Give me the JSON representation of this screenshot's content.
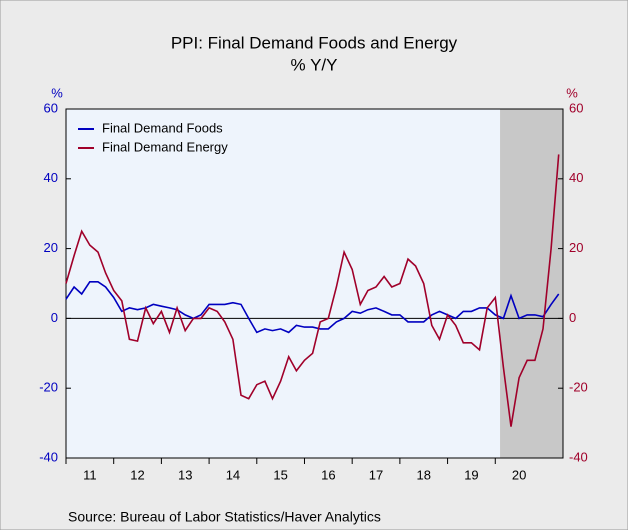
{
  "chart_data": {
    "type": "line",
    "title": "PPI: Final Demand Foods and Energy",
    "subtitle": "% Y/Y",
    "y_label": "%",
    "y2_label": "%",
    "source": "Source:  Bureau of Labor Statistics/Haver Analytics",
    "x": [
      11.0,
      11.17,
      11.33,
      11.5,
      11.67,
      11.83,
      12.0,
      12.17,
      12.33,
      12.5,
      12.67,
      12.83,
      13.0,
      13.17,
      13.33,
      13.5,
      13.67,
      13.83,
      14.0,
      14.17,
      14.33,
      14.5,
      14.67,
      14.83,
      15.0,
      15.17,
      15.33,
      15.5,
      15.67,
      15.83,
      16.0,
      16.17,
      16.33,
      16.5,
      16.67,
      16.83,
      17.0,
      17.17,
      17.33,
      17.5,
      17.67,
      17.83,
      18.0,
      18.17,
      18.33,
      18.5,
      18.67,
      18.83,
      19.0,
      19.17,
      19.33,
      19.5,
      19.67,
      19.83,
      20.0,
      20.17,
      20.33,
      20.5,
      20.67,
      20.83,
      21.0,
      21.17,
      21.33
    ],
    "series": [
      {
        "name": "Final Demand Foods",
        "color": "#0000c0",
        "values": [
          5.5,
          9,
          7,
          10.5,
          10.5,
          9,
          6,
          2,
          3,
          2.5,
          3,
          4,
          3.5,
          3,
          2.5,
          1,
          0,
          1,
          4,
          4,
          4,
          4.5,
          4,
          0,
          -4,
          -3,
          -3.5,
          -3,
          -4,
          -2,
          -2.5,
          -2.5,
          -3,
          -3,
          -1,
          0,
          2,
          1.5,
          2.5,
          3,
          2,
          1,
          1,
          -1,
          -1,
          -1,
          1,
          2,
          1,
          0,
          2,
          2,
          3,
          3,
          1,
          0,
          6.5,
          0,
          1,
          1,
          0.5,
          4,
          7
        ]
      },
      {
        "name": "Final Demand Energy",
        "color": "#a0002a",
        "axis": "y2",
        "values": [
          10,
          18,
          25,
          21,
          19,
          13,
          8,
          5,
          -6,
          -6.5,
          3,
          -1.5,
          2,
          -4,
          3,
          -3.5,
          0,
          0,
          3,
          2,
          -1,
          -6,
          -22,
          -23,
          -19,
          -18,
          -23,
          -18,
          -11,
          -15,
          -12,
          -10,
          -1,
          0,
          9,
          19,
          14,
          4,
          8,
          9,
          12,
          9,
          10,
          17,
          15,
          10,
          -2,
          -6,
          1,
          -2,
          -7,
          -7,
          -9,
          3,
          6,
          -14,
          -31,
          -17,
          -12,
          -12,
          -3,
          20,
          47
        ]
      }
    ],
    "shaded": [
      20.1,
      21.42
    ],
    "xlim": [
      11,
      21.42
    ],
    "xticks": [
      {
        "value": 11.5,
        "label": "11"
      },
      {
        "value": 12.5,
        "label": "12"
      },
      {
        "value": 13.5,
        "label": "13"
      },
      {
        "value": 14.5,
        "label": "14"
      },
      {
        "value": 15.5,
        "label": "15"
      },
      {
        "value": 16.5,
        "label": "16"
      },
      {
        "value": 17.5,
        "label": "17"
      },
      {
        "value": 18.5,
        "label": "18"
      },
      {
        "value": 19.5,
        "label": "19"
      },
      {
        "value": 20.5,
        "label": "20"
      }
    ],
    "ylim": [
      -40,
      60
    ],
    "yticks": [
      -40,
      -20,
      0,
      20,
      40,
      60
    ],
    "y2lim": [
      -40,
      60
    ],
    "y2ticks": [
      -40,
      -20,
      0,
      20,
      40,
      60
    ],
    "legend": "upper left"
  }
}
